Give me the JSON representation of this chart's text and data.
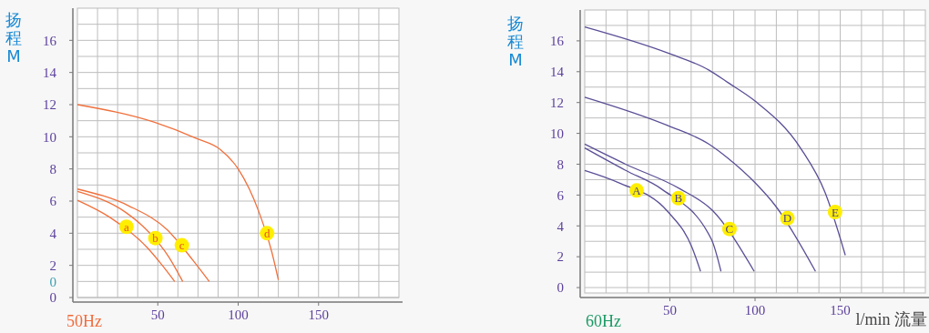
{
  "chart_data": [
    {
      "type": "line",
      "title": "50Hz",
      "ylabel": "扬程M",
      "xlim": [
        0,
        200
      ],
      "ylim": [
        0,
        18
      ],
      "grid": true,
      "marker": "none",
      "line_style": "solid",
      "xticks": [
        {
          "value": 12.5,
          "label": null
        },
        {
          "value": 25,
          "label": null
        },
        {
          "value": 37.5,
          "label": null
        },
        50,
        {
          "value": 62.5,
          "label": null
        },
        {
          "value": 75,
          "label": null
        },
        {
          "value": 87.5,
          "label": null
        },
        100,
        {
          "value": 112.5,
          "label": null
        },
        {
          "value": 125,
          "label": null
        },
        {
          "value": 137.5,
          "label": null
        },
        150,
        {
          "value": 162.5,
          "label": null
        },
        {
          "value": 175,
          "label": null
        },
        {
          "value": 187.5,
          "label": null
        }
      ],
      "yticks": [
        0,
        {
          "value": 1,
          "label": null
        },
        2,
        {
          "value": 3,
          "label": null
        },
        4,
        {
          "value": 5,
          "label": null
        },
        6,
        {
          "value": 7,
          "label": null
        },
        8,
        {
          "value": 9,
          "label": null
        },
        10,
        {
          "value": 11,
          "label": null
        },
        12,
        {
          "value": 13,
          "label": null
        },
        14,
        {
          "value": 15,
          "label": null
        },
        16,
        {
          "value": 17,
          "label": null
        }
      ],
      "series": [
        {
          "color": "#f0703c",
          "x": [
            0,
            20,
            43.5,
            52,
            60.5
          ],
          "values": [
            6.05,
            5.0,
            3.1,
            2.1,
            1.0
          ]
        },
        {
          "color": "#f0703c",
          "x": [
            0,
            30,
            40,
            57,
            65.5
          ],
          "values": [
            6.6,
            5.3,
            4.5,
            2.5,
            1.0
          ]
        },
        {
          "color": "#f0703c",
          "x": [
            0,
            32,
            56,
            72,
            82
          ],
          "values": [
            6.75,
            5.7,
            4.2,
            2.3,
            1.0
          ]
        },
        {
          "color": "#f0703c",
          "x": [
            0,
            48,
            74,
            89,
            100,
            113,
            121,
            125
          ],
          "values": [
            12.0,
            10.9,
            9.9,
            9.2,
            8.0,
            5.3,
            2.8,
            1.1
          ]
        }
      ],
      "annotations": [
        "0",
        {
          "text": "a",
          "x": 30.5,
          "y": 4.4
        },
        {
          "text": "b",
          "x": 48.5,
          "y": 3.7
        },
        {
          "text": "c",
          "x": 65,
          "y": 3.25
        },
        {
          "text": "d",
          "x": 118,
          "y": 4.0
        }
      ]
    },
    {
      "type": "line",
      "title": "60Hz",
      "ylabel": "扬程M",
      "xlabel": "l/min 流量",
      "xlim": [
        0,
        200
      ],
      "ylim": [
        -0.35,
        18
      ],
      "grid": true,
      "marker": "none",
      "line_style": "solid",
      "xticks": [
        {
          "value": 12.5,
          "label": null
        },
        {
          "value": 25,
          "label": null
        },
        {
          "value": 37.5,
          "label": null
        },
        50,
        {
          "value": 62.5,
          "label": null
        },
        {
          "value": 75,
          "label": null
        },
        {
          "value": 87.5,
          "label": null
        },
        100,
        {
          "value": 112.5,
          "label": null
        },
        {
          "value": 125,
          "label": null
        },
        {
          "value": 137.5,
          "label": null
        },
        150,
        {
          "value": 162.5,
          "label": null
        },
        {
          "value": 175,
          "label": null
        },
        {
          "value": 187.5,
          "label": null
        }
      ],
      "yticks": [
        0,
        {
          "value": 1,
          "label": null
        },
        2,
        {
          "value": 3,
          "label": null
        },
        4,
        {
          "value": 5,
          "label": null
        },
        6,
        {
          "value": 7,
          "label": null
        },
        8,
        {
          "value": 9,
          "label": null
        },
        10,
        {
          "value": 11,
          "label": null
        },
        12,
        {
          "value": 13,
          "label": null
        },
        14,
        {
          "value": 15,
          "label": null
        },
        16,
        {
          "value": 17,
          "label": null
        }
      ],
      "series": [
        {
          "color": "#5b4e96",
          "x": [
            0,
            20,
            49,
            63,
            68
          ],
          "values": [
            7.6,
            6.8,
            4.9,
            2.6,
            1.05
          ]
        },
        {
          "color": "#5b4e96",
          "x": [
            0,
            24,
            45,
            74.5,
            80
          ],
          "values": [
            9.05,
            7.6,
            6.4,
            3.1,
            1.05
          ]
        },
        {
          "color": "#5b4e96",
          "x": [
            0,
            24,
            56,
            75,
            99.5
          ],
          "values": [
            9.3,
            8.0,
            6.4,
            5.0,
            1.05
          ]
        },
        {
          "color": "#5b4e96",
          "x": [
            0,
            49,
            73,
            84,
            100,
            112,
            135.5
          ],
          "values": [
            12.35,
            10.5,
            9.3,
            8.4,
            6.8,
            5.3,
            1.05
          ]
        },
        {
          "color": "#5b4e96",
          "x": [
            0,
            49,
            73,
            84,
            100,
            127,
            141,
            153
          ],
          "values": [
            16.9,
            15.2,
            14.1,
            13.3,
            12.1,
            9.0,
            6.2,
            2.1
          ]
        }
      ],
      "annotations": [
        {
          "text": "A",
          "x": 30.5,
          "y": 6.3
        },
        {
          "text": "B",
          "x": 55,
          "y": 5.8
        },
        {
          "text": "C",
          "x": 85,
          "y": 3.8
        },
        {
          "text": "D",
          "x": 119,
          "y": 4.5
        },
        {
          "text": "E",
          "x": 147,
          "y": 4.9
        }
      ]
    }
  ]
}
